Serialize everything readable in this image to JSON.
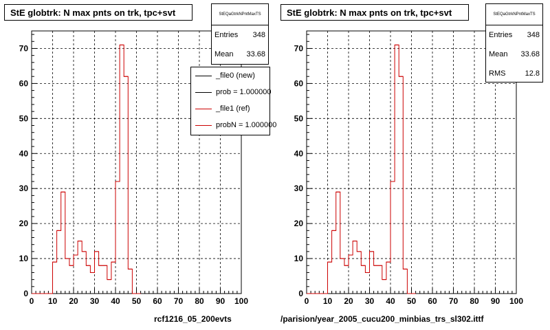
{
  "chart_data": [
    {
      "type": "histogram",
      "title": "StE globtrk: N max pnts on trk, tpc+svt",
      "xlim": [
        0,
        100
      ],
      "ylim": [
        0,
        75
      ],
      "xticks": [
        0,
        10,
        20,
        30,
        40,
        50,
        60,
        70,
        80,
        90,
        100
      ],
      "yticks": [
        0,
        10,
        20,
        30,
        40,
        50,
        60,
        70
      ],
      "grid": true,
      "bin_width": 2,
      "bins_x": [
        0,
        2,
        4,
        6,
        8,
        10,
        12,
        14,
        16,
        18,
        20,
        22,
        24,
        26,
        28,
        30,
        32,
        34,
        36,
        38,
        40,
        42,
        44,
        46,
        48,
        50
      ],
      "series": [
        {
          "color": "#cc0000",
          "values": [
            0,
            0,
            0,
            0,
            0,
            9,
            18,
            29,
            10,
            8,
            11,
            15,
            12,
            8,
            6,
            12,
            8,
            8,
            4,
            9,
            32,
            71,
            62,
            7,
            0,
            0
          ]
        }
      ],
      "stats": {
        "name": "StEQaGtrkNPntMaxTS",
        "entries_label": "Entries",
        "entries": "348",
        "mean_label": "Mean",
        "mean": "33.68"
      },
      "legend": {
        "placement": "top-right",
        "entries": [
          {
            "label": "_file0 (new)",
            "color": "#000000"
          },
          {
            "label": "prob = 1.000000",
            "color": "#000000"
          },
          {
            "label": "_file1 (ref)",
            "color": "#cc0000"
          },
          {
            "label": "probN = 1.000000",
            "color": "#cc0000"
          }
        ]
      },
      "file_label": "rcf1216_05_200evts"
    },
    {
      "type": "histogram",
      "title": "StE globtrk: N max pnts on trk, tpc+svt",
      "xlim": [
        0,
        100
      ],
      "ylim": [
        0,
        75
      ],
      "xticks": [
        0,
        10,
        20,
        30,
        40,
        50,
        60,
        70,
        80,
        90,
        100
      ],
      "yticks": [
        0,
        10,
        20,
        30,
        40,
        50,
        60,
        70
      ],
      "grid": true,
      "bin_width": 2,
      "bins_x": [
        0,
        2,
        4,
        6,
        8,
        10,
        12,
        14,
        16,
        18,
        20,
        22,
        24,
        26,
        28,
        30,
        32,
        34,
        36,
        38,
        40,
        42,
        44,
        46,
        48,
        50
      ],
      "series": [
        {
          "color": "#cc0000",
          "values": [
            0,
            0,
            0,
            0,
            0,
            9,
            18,
            29,
            10,
            8,
            11,
            15,
            12,
            8,
            6,
            12,
            8,
            8,
            4,
            9,
            32,
            71,
            62,
            7,
            0,
            0
          ]
        }
      ],
      "stats": {
        "name": "StEQaGtrkNPntMaxTS",
        "entries_label": "Entries",
        "entries": "348",
        "mean_label": "Mean",
        "mean": "33.68",
        "rms_label": "RMS",
        "rms": "12.8"
      },
      "file_label": "parision/year_2005_cucu200_minbias_trs_sl302.ittf/"
    }
  ]
}
